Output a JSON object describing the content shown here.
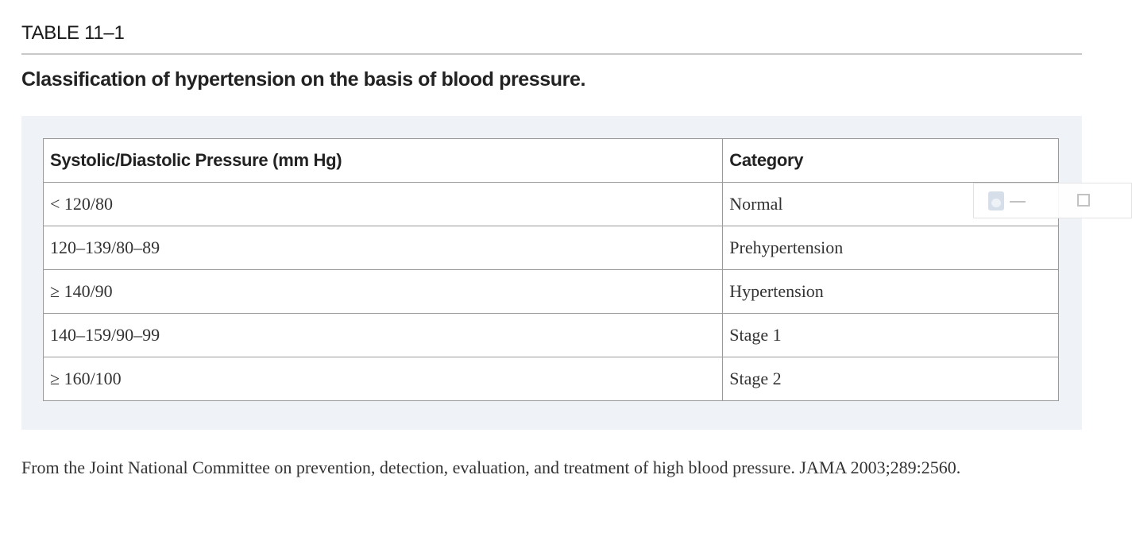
{
  "table_label": "TABLE 11–1",
  "table_title": "Classification of hypertension on the basis of blood pressure.",
  "table": {
    "headers": [
      "Systolic/Diastolic Pressure (mm Hg)",
      "Category"
    ],
    "rows": [
      [
        "< 120/80",
        "Normal"
      ],
      [
        "120–139/80–89",
        "Prehypertension"
      ],
      [
        "≥ 140/90",
        "Hypertension"
      ],
      [
        "140–159/90–99",
        "Stage 1"
      ],
      [
        "≥ 160/100",
        "Stage 2"
      ]
    ]
  },
  "footnote": "From the Joint National Committee on prevention, detection, evaluation, and treatment of high blood pressure. JAMA 2003;289:2560.",
  "overlay": {
    "icons": [
      "app-icon",
      "minimize-icon",
      "maximize-icon"
    ]
  },
  "colors": {
    "table_background": "#eff3f8",
    "border": "#9a9a9a",
    "rule": "#c8c8c8"
  }
}
